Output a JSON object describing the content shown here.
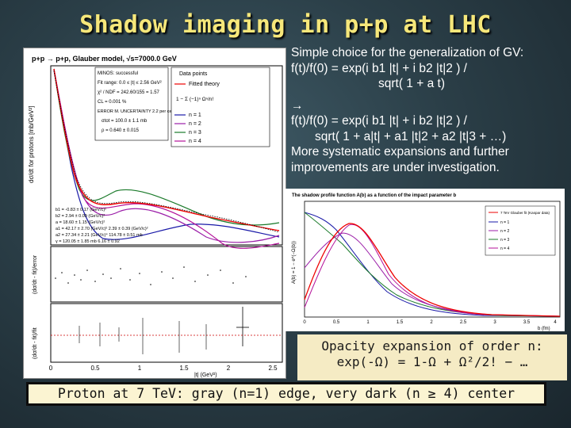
{
  "slide": {
    "title": "Shadow imaging in p+p at LHC"
  },
  "text_block": {
    "line1": "Simple choice for the generalization of GV:",
    "line2": "f(t)/f(0) = exp(i b1 |t| + i b2 |t|2 ) /",
    "line3": "sqrt( 1 + a t)",
    "line4": "→",
    "line5": "f(t)/f(0) = exp(i b1 |t| + i b2 |t|2 ) /",
    "line6": "sqrt( 1 + a|t| + a1 |t|2 + a2 |t|3 + …)",
    "line7": "More systematic expansions and further",
    "line8": "improvements are under investigation."
  },
  "left_plot": {
    "header": "p+p → p+p, Glauber model, √s=7000.0 GeV",
    "minuit": "MINOS: successful",
    "fit_range": "Fit range:  0.0 ≤ |t| ≤ 2.56 GeV²",
    "chi2": "χ² / NDF = 242.60/155 = 1.57",
    "cl": "CL = 0.001 %",
    "error": "ERROR M. UNCERTAINTY   2.2 per cent",
    "sigma_tot": "σtot = 100.0 ± 1.1 mb",
    "rho": "ρ = 0.640 ± 0.015",
    "legend_points": "Data points",
    "legend_fit": "Fitted theory",
    "legend_formula": "1 − Σ (−1)ⁿ Ωⁿ/n!",
    "legend_n": [
      "n = 1",
      "n = 2",
      "n = 3",
      "n = 4"
    ],
    "params": [
      "b1 = -0.83 ± 0.17 (GeV/c)²",
      "b2 = 2.94 ± 0.09 (GeV/c)²",
      "a = 18.60 ± 1.15 (GeV/c)²",
      "a1 = 42.17 ± 2.70 (GeV/c)²    2.39 ± 0.39 (GeV/c)²",
      "a2 = 27.34 ± 2.21 (GeV/c)⁴    114.78 ± 0.51 mb",
      "γ = 120.05 ± 1.85 mb          6.16 ± 0.92"
    ],
    "ylabel_top": "dσ/dt for protons [mb/GeV²]",
    "ylabel_mid": "(dσ/dt - fit)/error",
    "ylabel_bottom": "(dσ/dt - fit)/fit",
    "xticks": [
      "0",
      "0.5",
      "1",
      "1.5",
      "2",
      "2.5"
    ],
    "xlabel": "|t| (GeV²)"
  },
  "right_plot": {
    "header": "The shadow profile function A(b) as a function of the impact parameter b",
    "legend": [
      "7 TeV Glauber fit (Kaspar data)",
      "n = 1",
      "n = 2",
      "n = 3",
      "n = 4"
    ],
    "ylabel": "A(b) = 1 − e^(−Ω(b))",
    "xlabel": "b (fm)",
    "xticks": [
      "0",
      "0.5",
      "1",
      "1.5",
      "2",
      "2.5",
      "3",
      "3.5",
      "4"
    ]
  },
  "opacity": {
    "line1": "Opacity expansion of order n:",
    "line2": "exp(-Ω) = 1-Ω + Ω²/2! − …"
  },
  "footer": {
    "text": "Proton at 7 TeV: gray (n=1) edge, very dark (n ≥ 4) center"
  },
  "colors": {
    "title": "#f6e77a",
    "background": "#2b3f48",
    "box_fill": "#f5ebc4"
  }
}
